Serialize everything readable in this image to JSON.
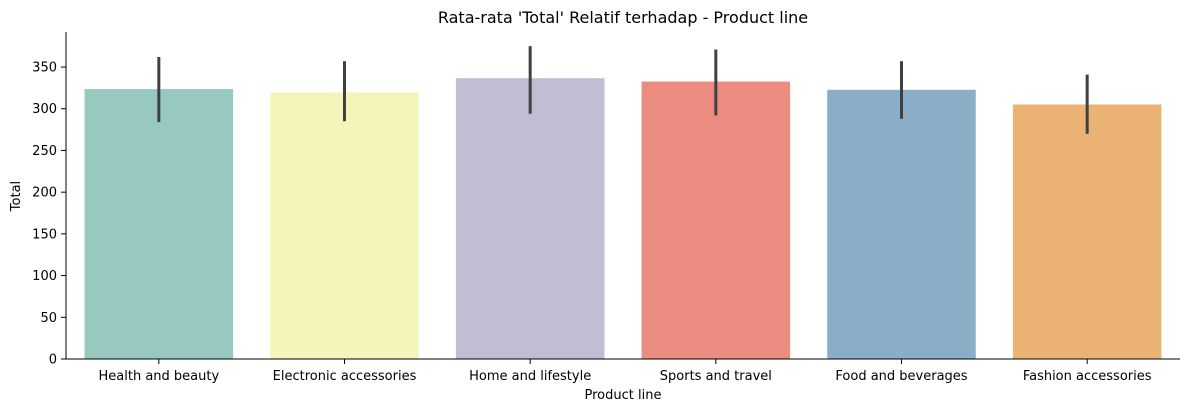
{
  "chart_data": {
    "type": "bar",
    "title": "Rata-rata 'Total' Relatif terhadap - Product line",
    "xlabel": "Product line",
    "ylabel": "Total",
    "ylim": [
      0,
      392
    ],
    "yticks": [
      0,
      50,
      100,
      150,
      200,
      250,
      300,
      350
    ],
    "grid": false,
    "categories": [
      "Health and beauty",
      "Electronic accessories",
      "Home and lifestyle",
      "Sports and travel",
      "Food and beverages",
      "Fashion accessories"
    ],
    "values": [
      323.6,
      319.6,
      336.6,
      332.6,
      322.7,
      305.1
    ],
    "error_low": [
      284,
      285,
      294,
      292,
      288,
      270
    ],
    "error_high": [
      362,
      357,
      375,
      371,
      357,
      341
    ],
    "colors": [
      "#97c9c0",
      "#f5f5bb",
      "#c0bdd5",
      "#ea8c80",
      "#8aaec8",
      "#eab275"
    ],
    "error_color": "#404040"
  }
}
